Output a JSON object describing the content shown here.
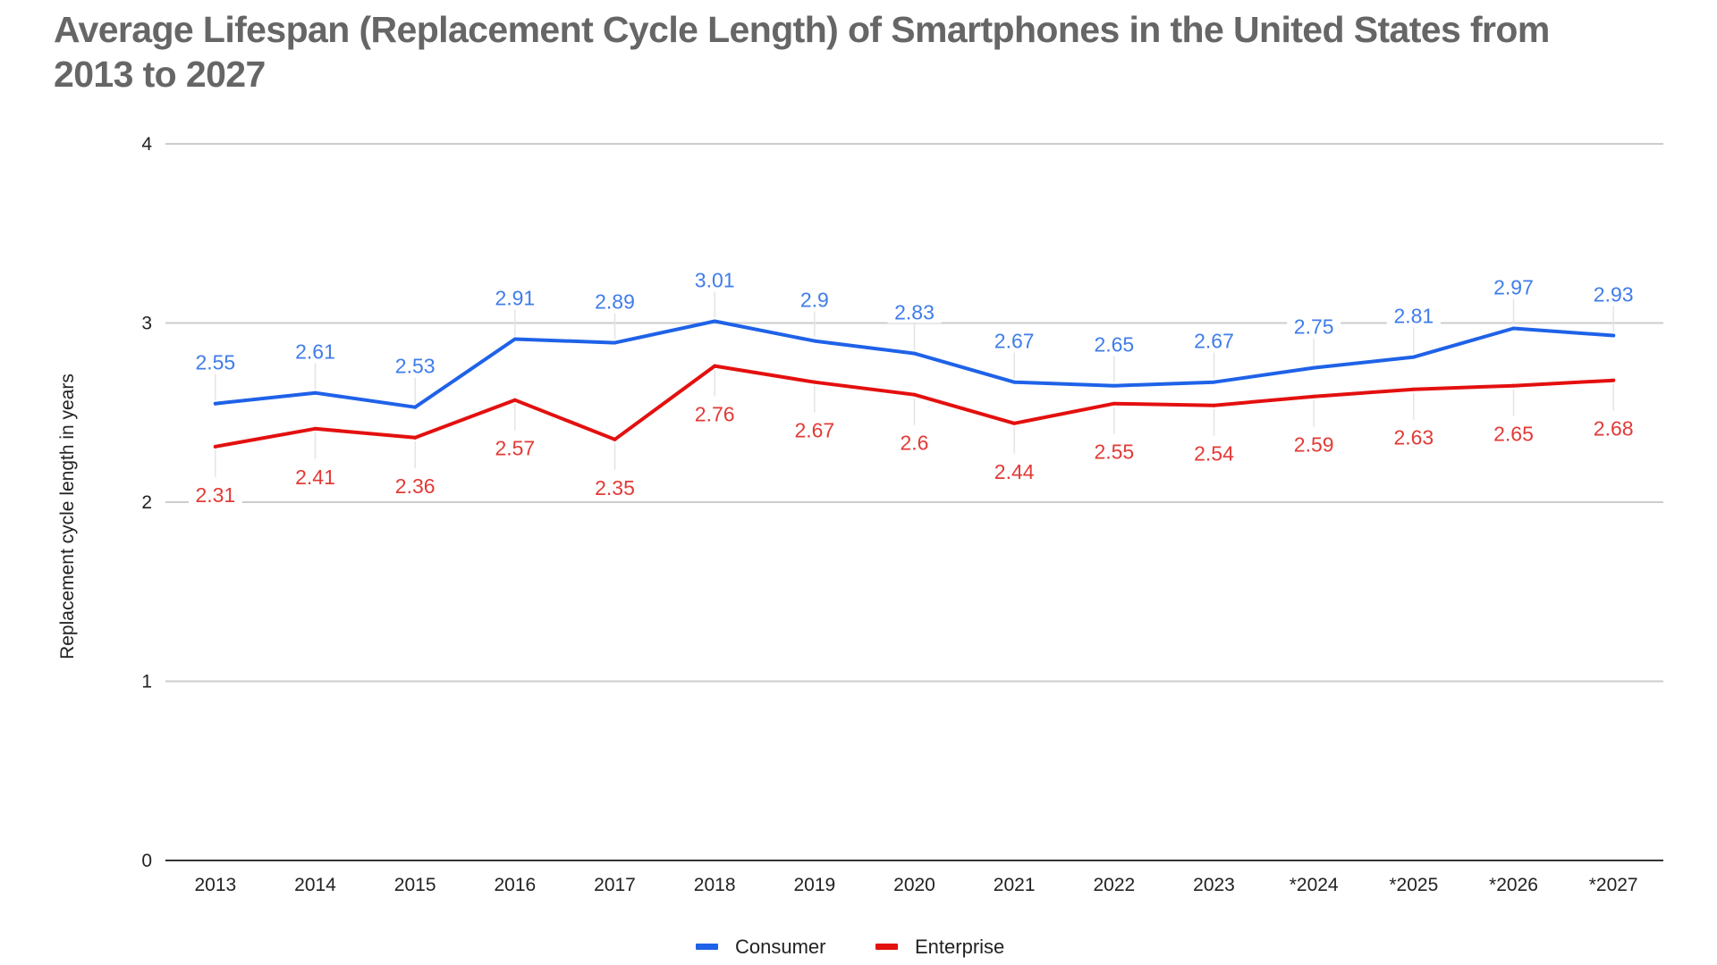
{
  "chart_data": {
    "type": "line",
    "title": "Average Lifespan (Replacement Cycle Length) of Smartphones in the United States from 2013 to 2027",
    "title_lines": [
      "Average Lifespan (Replacement Cycle Length) of Smartphones in the United States from",
      "2013 to 2027"
    ],
    "xlabel": "",
    "ylabel": "Replacement cycle length in years",
    "categories": [
      "2013",
      "2014",
      "2015",
      "2016",
      "2017",
      "2018",
      "2019",
      "2020",
      "2021",
      "2022",
      "2023",
      "*2024",
      "*2025",
      "*2026",
      "*2027"
    ],
    "ylim": [
      0,
      4
    ],
    "yticks": [
      "0",
      "1",
      "2",
      "3",
      "4"
    ],
    "grid": true,
    "legend_position": "bottom",
    "series": [
      {
        "name": "Consumer",
        "color": "#1f62e8",
        "label_color": "#3f7de9",
        "values": [
          2.55,
          2.61,
          2.53,
          2.91,
          2.89,
          3.01,
          2.9,
          2.83,
          2.67,
          2.65,
          2.67,
          2.75,
          2.81,
          2.97,
          2.93
        ],
        "labels": [
          "2.55",
          "2.61",
          "2.53",
          "2.91",
          "2.89",
          "3.01",
          "2.9",
          "2.83",
          "2.67",
          "2.65",
          "2.67",
          "2.75",
          "2.81",
          "2.97",
          "2.93"
        ],
        "label_placement": "above"
      },
      {
        "name": "Enterprise",
        "color": "#e3100f",
        "label_color": "#e23a36",
        "values": [
          2.31,
          2.41,
          2.36,
          2.57,
          2.35,
          2.76,
          2.67,
          2.6,
          2.44,
          2.55,
          2.54,
          2.59,
          2.63,
          2.65,
          2.68
        ],
        "labels": [
          "2.31",
          "2.41",
          "2.36",
          "2.57",
          "2.35",
          "2.76",
          "2.67",
          "2.6",
          "2.44",
          "2.55",
          "2.54",
          "2.59",
          "2.63",
          "2.65",
          "2.68"
        ],
        "label_placement": "below"
      }
    ]
  }
}
